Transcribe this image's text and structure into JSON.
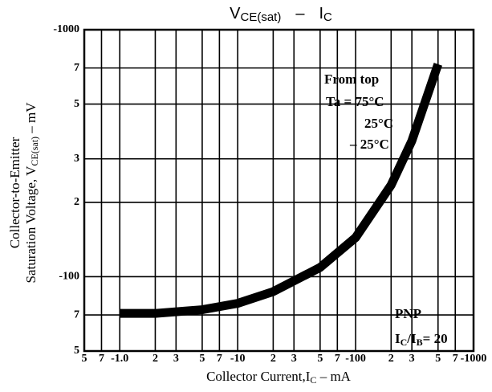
{
  "chart_data": {
    "type": "line",
    "title": {
      "main": "V",
      "sub": "CE(sat)",
      "dash": "–",
      "main2": "I",
      "sub2": "C"
    },
    "x_label": {
      "text": "Collector Current,I",
      "sub": "C",
      "unit": " – mA"
    },
    "y_label": {
      "line1": "Collector-to-Emitter",
      "line2": "Saturation Voltage, V",
      "sub": "CE(sat)",
      "unit": " – mV"
    },
    "annotations": {
      "from_top": "From top",
      "t1": "Ta = 75°C",
      "t2": "25°C",
      "t3": "– 25°C",
      "pnp": "PNP",
      "ratio_i": "I",
      "ratio_c": "C",
      "ratio_slash": "/I",
      "ratio_b": "B",
      "ratio_eq": "= 20"
    },
    "log_x": true,
    "log_y": true,
    "grid": true,
    "xlim": [
      -0.5,
      -1000
    ],
    "ylim": [
      -50,
      -1000
    ],
    "xticks": [
      {
        "value": -0.5,
        "label": "5"
      },
      {
        "value": -0.7,
        "label": "7"
      },
      {
        "value": -1,
        "label": "-1.0"
      },
      {
        "value": -2,
        "label": "2"
      },
      {
        "value": -3,
        "label": "3"
      },
      {
        "value": -5,
        "label": "5"
      },
      {
        "value": -7,
        "label": "7"
      },
      -10,
      {
        "value": -20,
        "label": "2"
      },
      {
        "value": -30,
        "label": "3"
      },
      {
        "value": -50,
        "label": "5"
      },
      {
        "value": -70,
        "label": "7"
      },
      -100,
      {
        "value": -200,
        "label": "2"
      },
      {
        "value": -300,
        "label": "3"
      },
      {
        "value": -500,
        "label": "5"
      },
      {
        "value": -700,
        "label": "7"
      },
      -1000
    ],
    "yticks": [
      -1000,
      {
        "value": -700,
        "label": "7"
      },
      {
        "value": -500,
        "label": "5"
      },
      {
        "value": -300,
        "label": "3"
      },
      {
        "value": -200,
        "label": "2"
      },
      -100,
      {
        "value": -70,
        "label": "7"
      },
      {
        "value": -50,
        "label": "5"
      }
    ],
    "series": [
      {
        "name": "Ta",
        "color": "#000000",
        "x": [
          -1,
          -2,
          -5,
          -10,
          -20,
          -50,
          -100,
          -200,
          -300,
          -500
        ],
        "values": [
          -71,
          -71,
          -73.5,
          -78,
          -87,
          -109,
          -144,
          -235,
          -355,
          -725
        ]
      }
    ]
  }
}
